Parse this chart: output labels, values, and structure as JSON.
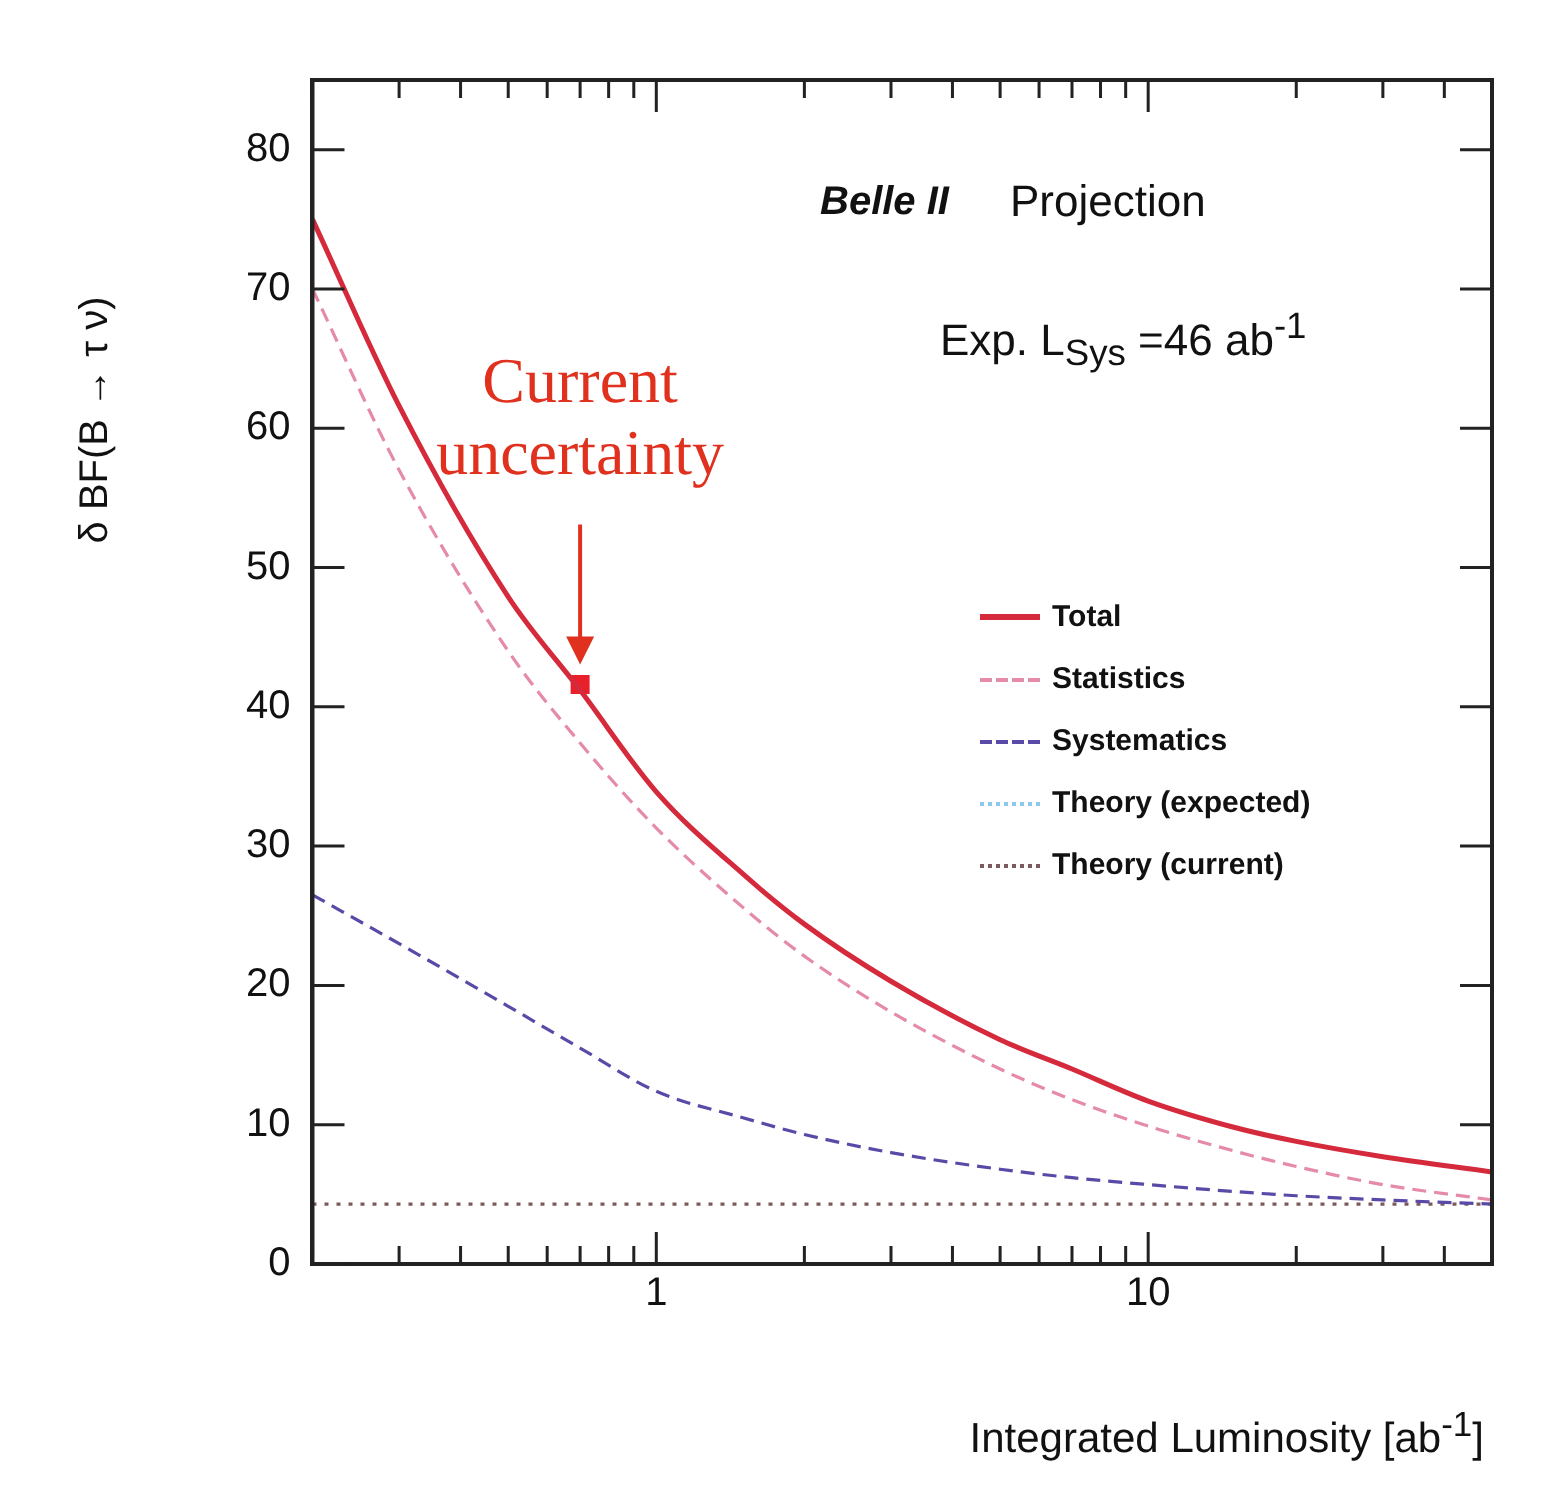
{
  "chart_data": {
    "type": "line",
    "xlabel": "Integrated Luminosity [ab$^{-1}$]",
    "ylabel": "δ BF(B → τ ν)",
    "x": [
      0.2,
      0.3,
      0.5,
      0.7,
      1,
      1.5,
      2,
      3,
      5,
      7,
      10,
      15,
      20,
      30,
      50
    ],
    "series": [
      {
        "name": "Total",
        "color": "#d42a3c",
        "line_style": "solid",
        "values": [
          75,
          61.6,
          47.9,
          41.2,
          33.9,
          28,
          24.4,
          20.3,
          16.1,
          14,
          11.7,
          9.8,
          8.8,
          7.7,
          6.6
        ]
      },
      {
        "name": "Statistics",
        "color": "#e58aa8",
        "line_style": "dashed",
        "values": [
          70,
          57,
          44,
          37.4,
          31.3,
          25.6,
          22.1,
          18.1,
          14,
          11.8,
          9.9,
          8.1,
          7,
          5.7,
          4.6
        ]
      },
      {
        "name": "Systematics",
        "color": "#5a4aa8",
        "line_style": "dashed",
        "values": [
          26.5,
          23,
          18.5,
          15.5,
          12.4,
          10.5,
          9.3,
          8,
          6.8,
          6.2,
          5.7,
          5.2,
          4.9,
          4.6,
          4.3
        ]
      },
      {
        "name": "Theory (expected)",
        "color": "#8cc8e8",
        "line_style": "dotted",
        "values": [
          null,
          null,
          null,
          null,
          null,
          null,
          null,
          null,
          null,
          null,
          null,
          null,
          null,
          null,
          null
        ]
      },
      {
        "name": "Theory (current)",
        "color": "#7a5a5a",
        "line_style": "dotted",
        "values": [
          4.3,
          4.3,
          4.3,
          4.3,
          4.3,
          4.3,
          4.3,
          4.3,
          4.3,
          4.3,
          4.3,
          4.3,
          4.3,
          4.3,
          4.3
        ]
      },
      {
        "type": "scatter",
        "x": [
          0.7
        ],
        "values": [
          41.6
        ],
        "color": "#e8202a",
        "marker": "square"
      }
    ],
    "annotations": [
      "Current uncertainty",
      "Belle II",
      "Projection",
      "Exp. L$_{Sys}$ =46 ab$^{-1}$"
    ],
    "xlim": [
      0.2,
      50
    ],
    "xticks": [
      {
        "value": 0.2,
        "label": null
      },
      {
        "value": 0.3,
        "label": null
      },
      {
        "value": 0.4,
        "label": null
      },
      {
        "value": 0.5,
        "label": null
      },
      {
        "value": 0.6,
        "label": null
      },
      {
        "value": 0.7,
        "label": null
      },
      {
        "value": 0.8,
        "label": null
      },
      {
        "value": 0.9,
        "label": null
      },
      1,
      {
        "value": 2,
        "label": null
      },
      {
        "value": 3,
        "label": null
      },
      {
        "value": 4,
        "label": null
      },
      {
        "value": 5,
        "label": null
      },
      {
        "value": 6,
        "label": null
      },
      {
        "value": 7,
        "label": null
      },
      {
        "value": 8,
        "label": null
      },
      {
        "value": 9,
        "label": null
      },
      10,
      {
        "value": 20,
        "label": null
      },
      {
        "value": 30,
        "label": null
      },
      {
        "value": 40,
        "label": null
      },
      {
        "value": 50,
        "label": null
      }
    ],
    "ylim": [
      0,
      85
    ],
    "yticks": [
      0,
      10,
      20,
      30,
      40,
      50,
      60,
      70,
      80
    ],
    "log": "x",
    "grid": false,
    "legend": "right"
  }
}
